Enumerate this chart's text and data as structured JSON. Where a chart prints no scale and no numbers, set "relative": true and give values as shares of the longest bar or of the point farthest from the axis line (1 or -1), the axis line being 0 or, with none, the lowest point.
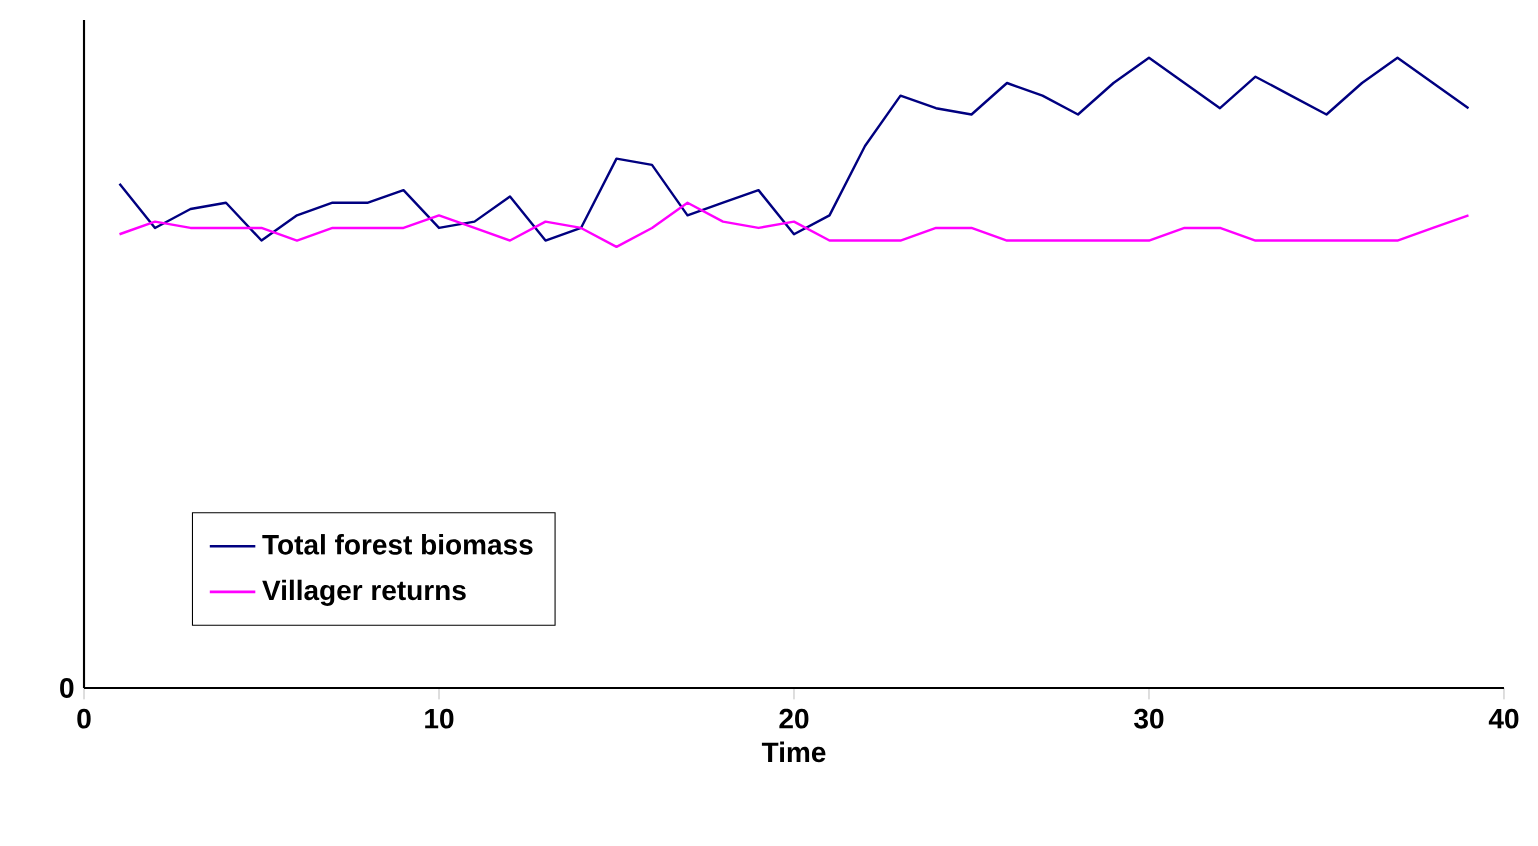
{
  "chart_data": {
    "type": "line",
    "xlabel": "Time",
    "relative": true,
    "xlim": [
      0,
      40
    ],
    "xticks": [
      0,
      10,
      20,
      30,
      40
    ],
    "annotations": [
      "0"
    ],
    "x": [
      1,
      2,
      3,
      4,
      5,
      6,
      7,
      8,
      9,
      10,
      11,
      12,
      13,
      14,
      15,
      16,
      17,
      18,
      19,
      20,
      21,
      22,
      23,
      24,
      25,
      26,
      27,
      28,
      29,
      30,
      31,
      32,
      33,
      34,
      35,
      36,
      37,
      38,
      39
    ],
    "series": [
      {
        "name": "Total forest biomass",
        "color": "#000080",
        "values": [
          0.8,
          0.73,
          0.76,
          0.77,
          0.71,
          0.75,
          0.77,
          0.77,
          0.79,
          0.73,
          0.74,
          0.78,
          0.71,
          0.73,
          0.84,
          0.83,
          0.75,
          0.77,
          0.79,
          0.72,
          0.75,
          0.86,
          0.94,
          0.92,
          0.91,
          0.96,
          0.94,
          0.91,
          0.96,
          1,
          0.96,
          0.92,
          0.97,
          0.94,
          0.91,
          0.96,
          1,
          0.96,
          0.92
        ]
      },
      {
        "name": "Villager returns",
        "color": "#ff00ff",
        "values": [
          0.72,
          0.74,
          0.73,
          0.73,
          0.73,
          0.71,
          0.73,
          0.73,
          0.73,
          0.75,
          0.73,
          0.71,
          0.74,
          0.73,
          0.7,
          0.73,
          0.77,
          0.74,
          0.73,
          0.74,
          0.71,
          0.71,
          0.71,
          0.73,
          0.73,
          0.71,
          0.71,
          0.71,
          0.71,
          0.71,
          0.73,
          0.73,
          0.71,
          0.71,
          0.71,
          0.71,
          0.71,
          0.73,
          0.75
        ]
      }
    ],
    "legend": "bottom left",
    "grid": false,
    "marker": "none",
    "line_style": "solid"
  }
}
